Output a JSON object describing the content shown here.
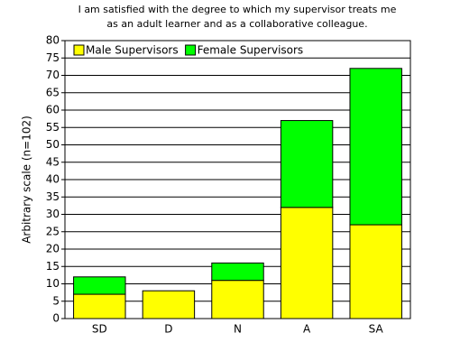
{
  "chart_data": {
    "type": "stacked_bar",
    "title": [
      "I am satisfied with the degree to which my supervisor treats me",
      "as an adult learner and as a collaborative colleague."
    ],
    "y_label": "Arbitrary scale (n=102)",
    "categories": [
      "SD",
      "D",
      "N",
      "A",
      "SA"
    ],
    "series": [
      {
        "name": "Male Supervisors",
        "color": "#ffff00",
        "values": [
          7,
          8,
          11,
          32,
          27
        ]
      },
      {
        "name": "Female Supervisors",
        "color": "#00ff00",
        "values": [
          5,
          0,
          5,
          25,
          45
        ]
      }
    ],
    "ylim": [
      0,
      80
    ],
    "yticks": [
      0,
      5,
      10,
      15,
      20,
      25,
      30,
      35,
      40,
      45,
      50,
      55,
      60,
      65,
      70,
      75,
      80
    ],
    "grid": true,
    "legend": "top-left"
  }
}
